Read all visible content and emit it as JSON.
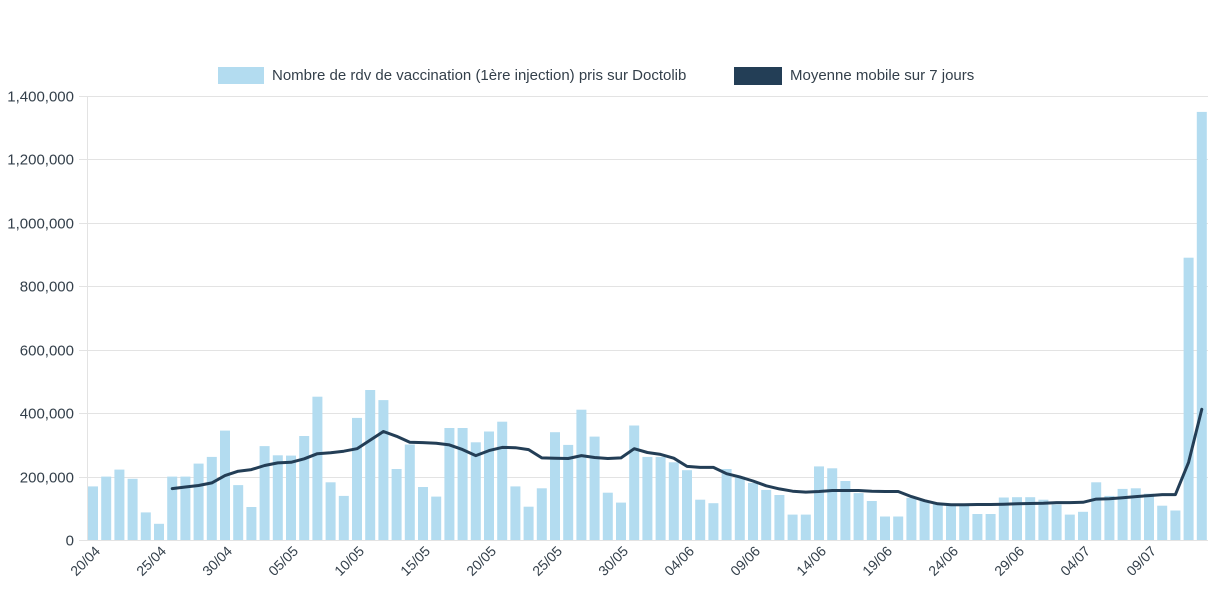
{
  "chart_data": {
    "type": "bar",
    "title": "",
    "xlabel": "",
    "ylabel": "",
    "ylim": [
      0,
      1400000
    ],
    "yticks": [
      0,
      200000,
      400000,
      600000,
      800000,
      1000000,
      1200000,
      1400000
    ],
    "ytick_labels": [
      "0",
      "200,000",
      "400,000",
      "600,000",
      "800,000",
      "1,000,000",
      "1,200,000",
      "1,400,000"
    ],
    "grid": true,
    "legend_position": "top-center",
    "legend": [
      {
        "label": "Nombre de rdv de vaccination (1ère injection) pris sur Doctolib",
        "color": "#b3dcf0",
        "kind": "bar"
      },
      {
        "label": "Moyenne mobile sur 7 jours",
        "color": "#233e56",
        "kind": "line"
      }
    ],
    "x_start_date": "20/04",
    "x_tick_labels": [
      {
        "index": 0,
        "label": "20/04"
      },
      {
        "index": 5,
        "label": "25/04"
      },
      {
        "index": 10,
        "label": "30/04"
      },
      {
        "index": 15,
        "label": "05/05"
      },
      {
        "index": 20,
        "label": "10/05"
      },
      {
        "index": 25,
        "label": "15/05"
      },
      {
        "index": 30,
        "label": "20/05"
      },
      {
        "index": 35,
        "label": "25/05"
      },
      {
        "index": 40,
        "label": "30/05"
      },
      {
        "index": 45,
        "label": "04/06"
      },
      {
        "index": 50,
        "label": "09/06"
      },
      {
        "index": 55,
        "label": "14/06"
      },
      {
        "index": 60,
        "label": "19/06"
      },
      {
        "index": 65,
        "label": "24/06"
      },
      {
        "index": 70,
        "label": "29/06"
      },
      {
        "index": 75,
        "label": "04/07"
      },
      {
        "index": 80,
        "label": "09/07"
      }
    ],
    "series": [
      {
        "name": "Nombre de rdv de vaccination (1ère injection) pris sur Doctolib",
        "type": "bar",
        "values": [
          169000,
          200000,
          222000,
          193000,
          87000,
          51000,
          200000,
          200000,
          241000,
          262000,
          345000,
          173000,
          104000,
          296000,
          267000,
          266000,
          328000,
          452000,
          182000,
          139000,
          385000,
          473000,
          441000,
          224000,
          301000,
          167000,
          137000,
          353000,
          353000,
          308000,
          342000,
          373000,
          169000,
          105000,
          163000,
          340000,
          300000,
          411000,
          326000,
          149000,
          118000,
          361000,
          262000,
          262000,
          245000,
          220000,
          127000,
          116000,
          224000,
          200000,
          180000,
          158000,
          142000,
          80000,
          80000,
          232000,
          226000,
          186000,
          148000,
          123000,
          74000,
          74000,
          133000,
          123000,
          116000,
          115000,
          108000,
          82000,
          82000,
          134000,
          135000,
          135000,
          127000,
          112000,
          80000,
          89000,
          182000,
          139000,
          161000,
          163000,
          146000,
          108000,
          93000,
          890000,
          1350000
        ]
      },
      {
        "name": "Moyenne mobile sur 7 jours",
        "type": "line",
        "values": [
          null,
          null,
          null,
          null,
          null,
          null,
          162000,
          167000,
          172000,
          180000,
          203000,
          217000,
          222000,
          235000,
          243000,
          245000,
          256000,
          272000,
          275000,
          280000,
          288000,
          315000,
          342000,
          327000,
          308000,
          307000,
          305000,
          300000,
          285000,
          266000,
          282000,
          292000,
          291000,
          285000,
          259000,
          258000,
          257000,
          266000,
          260000,
          257000,
          259000,
          288000,
          276000,
          270000,
          258000,
          232000,
          229000,
          229000,
          209000,
          199000,
          186000,
          171000,
          161000,
          154000,
          151000,
          153000,
          156000,
          156000,
          156000,
          154000,
          153000,
          153000,
          137000,
          124000,
          114000,
          111000,
          111000,
          112000,
          112000,
          113000,
          114000,
          115000,
          116000,
          118000,
          118000,
          119000,
          129000,
          130000,
          133000,
          137000,
          140000,
          143000,
          143000,
          245000,
          412000
        ]
      }
    ]
  }
}
